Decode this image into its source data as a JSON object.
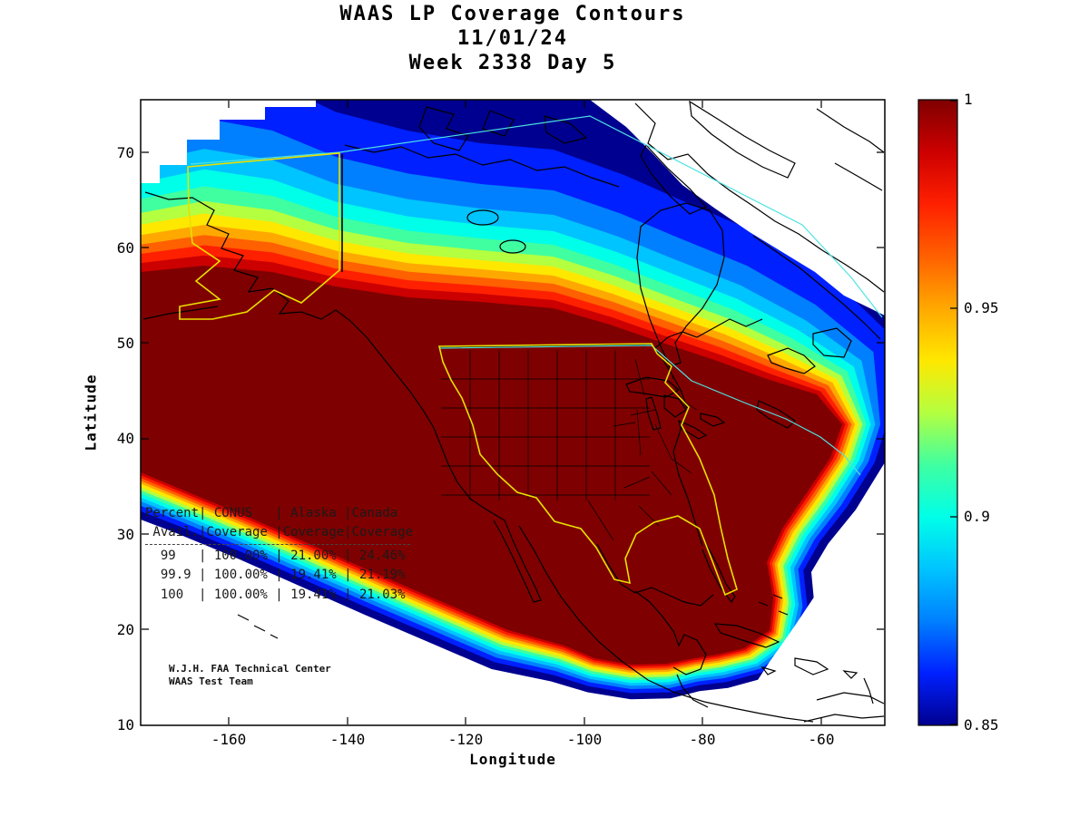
{
  "title": {
    "line1": "WAAS LP Coverage Contours",
    "line2": "11/01/24",
    "line3": "Week 2338 Day 5"
  },
  "axes": {
    "xlabel": "Longitude",
    "ylabel": "Latitude",
    "xticks": [
      "-160",
      "-140",
      "-120",
      "-100",
      "-80",
      "-60"
    ],
    "yticks": [
      "70",
      "60",
      "50",
      "40",
      "30",
      "20",
      "10"
    ]
  },
  "colorbar": {
    "ticks": [
      "1",
      "0.95",
      "0.9",
      "0.85"
    ]
  },
  "coverage_table": {
    "header1": "Percent| CONUS   | Alaska |Canada",
    "header2": " Avail.|Coverage |Coverage|Coverage",
    "rows": [
      "  99   | 100.00% | 21.00% | 24.46%",
      "  99.9 | 100.00% | 19.41% | 21.19%",
      "  100  | 100.00% | 19.41% | 21.03%"
    ]
  },
  "credit": {
    "line1": "W.J.H. FAA Technical Center",
    "line2": "WAAS Test Team"
  },
  "chart_data": {
    "type": "heatmap",
    "subtype": "filled-contour-coverage-map",
    "title": "WAAS LP Coverage Contours",
    "subtitle": [
      "11/01/24",
      "Week 2338 Day 5"
    ],
    "xlabel": "Longitude",
    "ylabel": "Latitude",
    "xlim": [
      -175,
      -48
    ],
    "ylim": [
      10,
      75
    ],
    "xticks": [
      -160,
      -140,
      -120,
      -100,
      -80,
      -60
    ],
    "yticks": [
      10,
      20,
      30,
      40,
      50,
      60,
      70
    ],
    "colorbar": {
      "min": 0.85,
      "max": 1.0,
      "ticks": [
        0.85,
        0.9,
        0.95,
        1
      ],
      "colormap": "jet",
      "orientation": "vertical",
      "position": "right"
    },
    "contour_colors": [
      "#000090",
      "#0020ff",
      "#0080ff",
      "#00c4ff",
      "#00ffe8",
      "#40ffa0",
      "#b4ff40",
      "#ffe800",
      "#ffa800",
      "#ff6000",
      "#ff2000",
      "#cc0000",
      "#7f0000"
    ],
    "regions": [
      {
        "area": "CONUS and mid-latitude North America (lat below ~52N)",
        "availability": "~1.00 (dark red)"
      },
      {
        "area": "Transition band lat ~53-62N (southern Alaska to Hudson Bay)",
        "availability": "0.95-1.00 (red/orange/yellow/green bands)"
      },
      {
        "area": "Interior Alaska and northern Canada (lat above ~62N)",
        "availability": "0.85-0.92 (cyan/blue/dark blue)"
      }
    ],
    "coverage_table": {
      "columns": [
        "Percent Avail.",
        "CONUS Coverage",
        "Alaska Coverage",
        "Canada Coverage"
      ],
      "rows": [
        [
          "99",
          "100.00%",
          "21.00%",
          "24.46%"
        ],
        [
          "99.9",
          "100.00%",
          "19.41%",
          "21.19%"
        ],
        [
          "100",
          "100.00%",
          "19.41%",
          "21.03%"
        ]
      ]
    },
    "annotations": [
      "W.J.H. FAA Technical Center",
      "WAAS Test Team"
    ]
  }
}
